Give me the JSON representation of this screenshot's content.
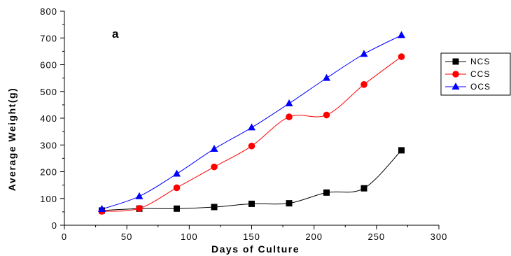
{
  "chart_data": {
    "type": "line",
    "panel_label": "a",
    "xlabel": "Days of Culture",
    "ylabel": "Average Weight(g)",
    "xlim": [
      0,
      300
    ],
    "ylim": [
      0,
      800
    ],
    "xticks": [
      0,
      50,
      100,
      150,
      200,
      250,
      300
    ],
    "yticks": [
      0,
      100,
      200,
      300,
      400,
      500,
      600,
      700,
      800
    ],
    "grid": false,
    "legend_position": "right",
    "series": [
      {
        "name": "NCS",
        "color": "#000000",
        "marker": "square",
        "x": [
          30,
          60,
          90,
          120,
          150,
          180,
          210,
          240,
          270
        ],
        "y": [
          55,
          62,
          62,
          68,
          80,
          82,
          122,
          138,
          280
        ]
      },
      {
        "name": "CCS",
        "color": "#ff0000",
        "marker": "circle",
        "x": [
          30,
          60,
          90,
          120,
          150,
          180,
          210,
          240,
          270
        ],
        "y": [
          52,
          63,
          140,
          218,
          296,
          405,
          412,
          526,
          630
        ]
      },
      {
        "name": "OCS",
        "color": "#0000ff",
        "marker": "triangle",
        "x": [
          30,
          60,
          90,
          120,
          150,
          180,
          210,
          240,
          270
        ],
        "y": [
          60,
          108,
          192,
          285,
          365,
          455,
          550,
          640,
          710
        ]
      }
    ]
  }
}
